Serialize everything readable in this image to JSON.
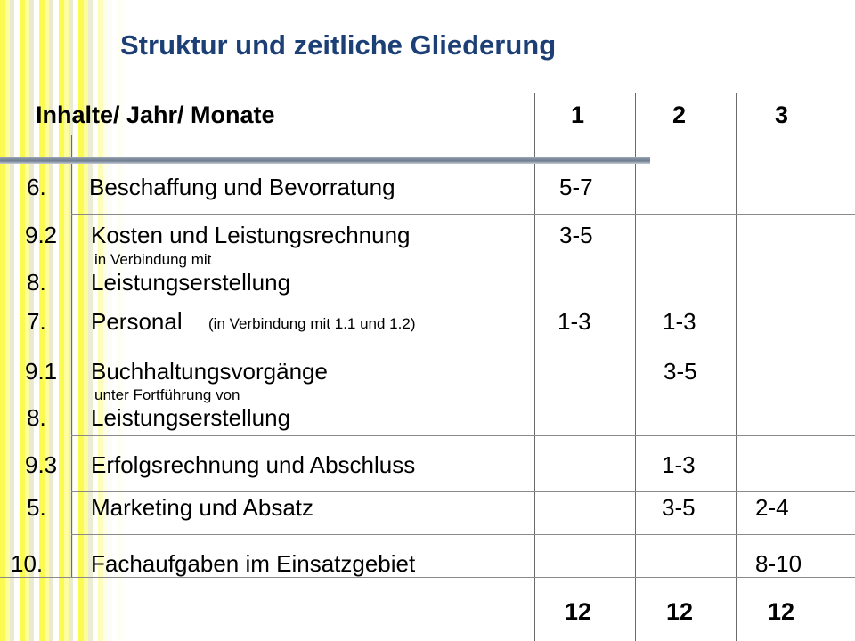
{
  "title": "Struktur und zeitliche Gliederung",
  "header": {
    "label": "Inhalte/ Jahr/ Monate",
    "col1": "1",
    "col2": "2",
    "col3": "3"
  },
  "rows": [
    {
      "num": "6.",
      "text": "Beschaffung und Bevorratung",
      "y1": "5-7",
      "y2": "",
      "y3": ""
    },
    {
      "num": "9.2",
      "text": "Kosten und Leistungsrechnung",
      "y1": "3-5",
      "y2": "",
      "y3": "",
      "sub": "in Verbindung mit",
      "num2": "8.",
      "text2": "Leistungserstellung"
    },
    {
      "num": "7.",
      "text": "Personal",
      "note": "(in Verbindung mit 1.1 und 1.2)",
      "y1": "1-3",
      "y2": "1-3",
      "y3": ""
    },
    {
      "num": "9.1",
      "text": "Buchhaltungsvorgänge",
      "y1": "",
      "y2": "3-5",
      "y3": "",
      "sub": "unter Fortführung von",
      "num2": "8.",
      "text2": "Leistungserstellung"
    },
    {
      "num": "9.3",
      "text": "Erfolgsrechnung und Abschluss",
      "y1": "",
      "y2": "1-3",
      "y3": ""
    },
    {
      "num": "5.",
      "text": "Marketing und Absatz",
      "y1": "",
      "y2": "3-5",
      "y3": "2-4"
    },
    {
      "num": "10.",
      "text": "Fachaufgaben im Einsatzgebiet",
      "y1": "",
      "y2": "",
      "y3": "8-10"
    }
  ],
  "totals": {
    "y1": "12",
    "y2": "12",
    "y3": "12"
  }
}
